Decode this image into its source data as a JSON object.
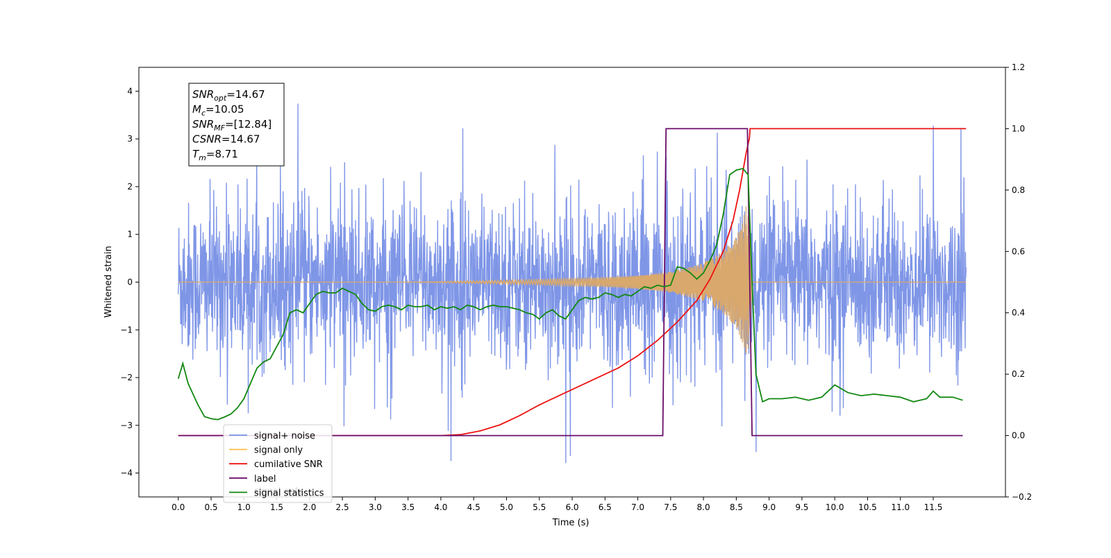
{
  "chart_data": {
    "type": "line",
    "xlabel": "Time (s)",
    "ylabel": "Whitened strain",
    "xlim": [
      -0.6,
      12.6
    ],
    "ylim": [
      -4.5,
      4.5
    ],
    "y2lim": [
      -0.2,
      1.2
    ],
    "x_ticks": [
      "0.0",
      "0.5",
      "1.0",
      "1.5",
      "2.0",
      "2.5",
      "3.0",
      "3.5",
      "4.0",
      "4.5",
      "5.0",
      "5.5",
      "6.0",
      "6.5",
      "7.0",
      "7.5",
      "8.0",
      "8.5",
      "9.0",
      "9.5",
      "10.0",
      "10.5",
      "11.0",
      "11.5"
    ],
    "y_ticks": [
      "4",
      "3",
      "2",
      "1",
      "0",
      "−1",
      "−2",
      "−3",
      "−4"
    ],
    "y2_ticks": [
      "1.2",
      "1.0",
      "0.8",
      "0.6",
      "0.4",
      "0.2",
      "0.0",
      "−0.2"
    ],
    "grid": false,
    "legend_position": "lower-left",
    "annotation": [
      {
        "base": "SNR",
        "sub": "opt",
        "value": "=14.67"
      },
      {
        "base": "M",
        "sub": "c",
        "value": "=10.05"
      },
      {
        "base": "SNR",
        "sub": "MF",
        "value": "=[12.84]"
      },
      {
        "base": "CSNR",
        "sub": "",
        "value": "=14.67"
      },
      {
        "base": "T",
        "sub": "m",
        "value": "=8.71"
      }
    ],
    "legend_entries": [
      {
        "label": "signal+ noise",
        "color": "#7890e6"
      },
      {
        "label": "signal only",
        "color": "#ffbf47"
      },
      {
        "label": "cumilative SNR",
        "color": "#ee1111"
      },
      {
        "label": "label",
        "color": "#6a0d6a"
      },
      {
        "label": "signal statistics",
        "color": "#118811"
      }
    ],
    "hidden_legend_text": "signal only",
    "series": [
      {
        "name": "signal+ noise",
        "axis": "left",
        "color": "#7890e6",
        "x_range": [
          0.0,
          12.0
        ],
        "typical_amplitude": 1.8,
        "peak_max": 3.8,
        "peak_min": -3.8
      },
      {
        "name": "signal only",
        "axis": "left",
        "color": "#d9a86c",
        "chirp_start": 3.5,
        "chirp_end": 8.71,
        "envelope": [
          [
            3.5,
            0.0
          ],
          [
            4.5,
            0.03
          ],
          [
            5.5,
            0.06
          ],
          [
            6.5,
            0.1
          ],
          [
            7.0,
            0.14
          ],
          [
            7.5,
            0.22
          ],
          [
            8.0,
            0.4
          ],
          [
            8.3,
            0.65
          ],
          [
            8.5,
            0.95
          ],
          [
            8.6,
            1.3
          ],
          [
            8.65,
            1.6
          ],
          [
            8.71,
            1.2
          ],
          [
            8.75,
            0.0
          ]
        ]
      },
      {
        "name": "cumilative SNR",
        "axis": "right",
        "color": "#ee1111",
        "points": [
          [
            0.0,
            0.0
          ],
          [
            4.0,
            0.0
          ],
          [
            4.3,
            0.003
          ],
          [
            4.6,
            0.015
          ],
          [
            4.9,
            0.035
          ],
          [
            5.2,
            0.065
          ],
          [
            5.5,
            0.1
          ],
          [
            5.8,
            0.13
          ],
          [
            6.1,
            0.16
          ],
          [
            6.4,
            0.19
          ],
          [
            6.7,
            0.22
          ],
          [
            7.0,
            0.26
          ],
          [
            7.3,
            0.31
          ],
          [
            7.6,
            0.37
          ],
          [
            7.9,
            0.44
          ],
          [
            8.1,
            0.51
          ],
          [
            8.3,
            0.6
          ],
          [
            8.45,
            0.7
          ],
          [
            8.55,
            0.8
          ],
          [
            8.65,
            0.92
          ],
          [
            8.7,
            0.97
          ],
          [
            8.71,
            1.0
          ],
          [
            12.0,
            1.0
          ]
        ]
      },
      {
        "name": "label",
        "axis": "right",
        "color": "#6a0d6a",
        "points": [
          [
            0.0,
            0.0
          ],
          [
            7.38,
            0.0
          ],
          [
            7.43,
            1.0
          ],
          [
            8.67,
            1.0
          ],
          [
            8.74,
            0.0
          ],
          [
            11.95,
            0.0
          ]
        ]
      },
      {
        "name": "signal statistics",
        "axis": "right",
        "color": "#118811",
        "points": [
          [
            0.0,
            0.185
          ],
          [
            0.07,
            0.235
          ],
          [
            0.15,
            0.17
          ],
          [
            0.3,
            0.1
          ],
          [
            0.4,
            0.062
          ],
          [
            0.5,
            0.055
          ],
          [
            0.6,
            0.052
          ],
          [
            0.7,
            0.06
          ],
          [
            0.8,
            0.07
          ],
          [
            0.9,
            0.09
          ],
          [
            1.0,
            0.12
          ],
          [
            1.1,
            0.17
          ],
          [
            1.2,
            0.22
          ],
          [
            1.3,
            0.24
          ],
          [
            1.4,
            0.25
          ],
          [
            1.5,
            0.29
          ],
          [
            1.6,
            0.33
          ],
          [
            1.7,
            0.4
          ],
          [
            1.8,
            0.41
          ],
          [
            1.9,
            0.4
          ],
          [
            2.0,
            0.43
          ],
          [
            2.1,
            0.46
          ],
          [
            2.2,
            0.47
          ],
          [
            2.3,
            0.465
          ],
          [
            2.4,
            0.465
          ],
          [
            2.5,
            0.48
          ],
          [
            2.6,
            0.47
          ],
          [
            2.7,
            0.46
          ],
          [
            2.8,
            0.43
          ],
          [
            2.9,
            0.41
          ],
          [
            3.0,
            0.405
          ],
          [
            3.1,
            0.42
          ],
          [
            3.2,
            0.425
          ],
          [
            3.3,
            0.42
          ],
          [
            3.4,
            0.41
          ],
          [
            3.5,
            0.425
          ],
          [
            3.6,
            0.42
          ],
          [
            3.7,
            0.42
          ],
          [
            3.8,
            0.425
          ],
          [
            3.9,
            0.41
          ],
          [
            4.0,
            0.42
          ],
          [
            4.1,
            0.415
          ],
          [
            4.2,
            0.42
          ],
          [
            4.3,
            0.41
          ],
          [
            4.4,
            0.425
          ],
          [
            4.5,
            0.42
          ],
          [
            4.6,
            0.41
          ],
          [
            4.7,
            0.42
          ],
          [
            4.8,
            0.425
          ],
          [
            4.9,
            0.42
          ],
          [
            5.0,
            0.42
          ],
          [
            5.1,
            0.415
          ],
          [
            5.2,
            0.41
          ],
          [
            5.3,
            0.4
          ],
          [
            5.4,
            0.395
          ],
          [
            5.5,
            0.38
          ],
          [
            5.6,
            0.4
          ],
          [
            5.7,
            0.41
          ],
          [
            5.8,
            0.39
          ],
          [
            5.9,
            0.38
          ],
          [
            6.0,
            0.41
          ],
          [
            6.1,
            0.44
          ],
          [
            6.2,
            0.45
          ],
          [
            6.3,
            0.445
          ],
          [
            6.4,
            0.45
          ],
          [
            6.5,
            0.465
          ],
          [
            6.6,
            0.46
          ],
          [
            6.7,
            0.45
          ],
          [
            6.8,
            0.46
          ],
          [
            6.9,
            0.455
          ],
          [
            7.0,
            0.47
          ],
          [
            7.1,
            0.485
          ],
          [
            7.2,
            0.48
          ],
          [
            7.3,
            0.49
          ],
          [
            7.4,
            0.485
          ],
          [
            7.5,
            0.49
          ],
          [
            7.6,
            0.55
          ],
          [
            7.7,
            0.545
          ],
          [
            7.8,
            0.53
          ],
          [
            7.9,
            0.51
          ],
          [
            8.0,
            0.53
          ],
          [
            8.1,
            0.57
          ],
          [
            8.2,
            0.62
          ],
          [
            8.3,
            0.72
          ],
          [
            8.4,
            0.85
          ],
          [
            8.5,
            0.865
          ],
          [
            8.6,
            0.87
          ],
          [
            8.68,
            0.85
          ],
          [
            8.74,
            0.5
          ],
          [
            8.8,
            0.2
          ],
          [
            8.9,
            0.11
          ],
          [
            9.0,
            0.12
          ],
          [
            9.2,
            0.12
          ],
          [
            9.4,
            0.125
          ],
          [
            9.6,
            0.115
          ],
          [
            9.8,
            0.125
          ],
          [
            10.0,
            0.165
          ],
          [
            10.2,
            0.14
          ],
          [
            10.4,
            0.13
          ],
          [
            10.6,
            0.135
          ],
          [
            10.8,
            0.13
          ],
          [
            11.0,
            0.125
          ],
          [
            11.2,
            0.11
          ],
          [
            11.4,
            0.12
          ],
          [
            11.5,
            0.145
          ],
          [
            11.6,
            0.125
          ],
          [
            11.8,
            0.125
          ],
          [
            11.95,
            0.115
          ]
        ]
      }
    ]
  }
}
